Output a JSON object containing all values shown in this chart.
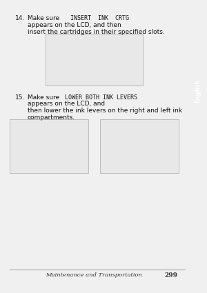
{
  "bg_color": "#f0f0f0",
  "page_bg": "#ffffff",
  "tab_color": "#5a5a5a",
  "tab_text": "English",
  "tab_text_color": "#ffffff",
  "footer_line_color": "#999999",
  "footer_italic_text": "Maintenance and Transportation",
  "footer_page_num": "299",
  "footer_text_color": "#333333",
  "step14_num": "14.",
  "step14_text_normal": "Make sure ",
  "step14_text_mono": "INSERT  INK  CRTG",
  "step14_text_rest1": "appears on the LCD, and then",
  "step14_text_rest2": "insert the cartridges in their specified slots.",
  "step15_num": "15.",
  "step15_text_normal": "Make sure ",
  "step15_text_mono": "LOWER BOTH INK LEVERS",
  "step15_text_rest1": "appears on the LCD, and",
  "step15_text_rest2": "then lower the ink levers on the right and left ink",
  "step15_text_rest3": "compartments.",
  "img_edge_color": "#aaaaaa",
  "img_fill_color": "#e8e8e8",
  "text_fontsize": 6.5,
  "mono_fontsize": 6.0,
  "num_fontsize": 6.5
}
